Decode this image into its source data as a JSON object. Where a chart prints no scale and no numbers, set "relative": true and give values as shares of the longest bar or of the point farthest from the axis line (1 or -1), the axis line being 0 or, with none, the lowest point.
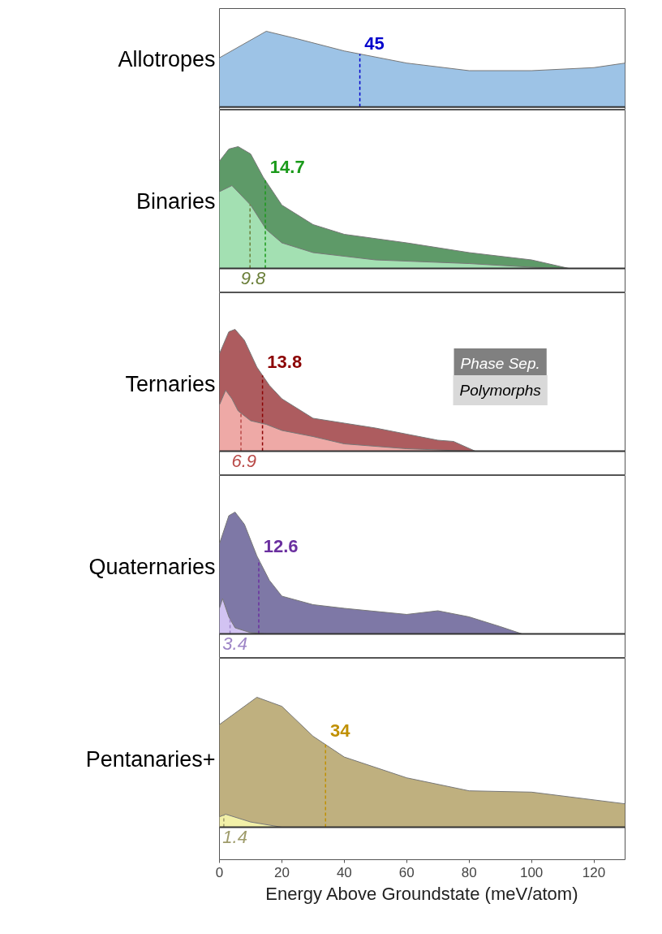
{
  "chart_data": [
    {
      "type": "area",
      "ylabel": "Allotropes",
      "relative": true,
      "xlim": [
        0,
        130
      ],
      "tick_labels": false,
      "grid": false,
      "series": [
        {
          "color": "#9dc3e6",
          "x": [
            0,
            15,
            25,
            40,
            60,
            80,
            100,
            120,
            130
          ],
          "values": [
            0.65,
            1,
            0.9,
            0.74,
            0.58,
            0.48,
            0.48,
            0.52,
            0.58
          ]
        }
      ],
      "ref_lines": [
        {
          "axis": "x",
          "value": 45,
          "label": "45",
          "color": "#0000cc",
          "line_style": "dashed"
        }
      ]
    },
    {
      "type": "area",
      "ylabel": "Binaries",
      "relative": true,
      "xlim": [
        0,
        130
      ],
      "tick_labels": false,
      "grid": false,
      "series": [
        {
          "color": "#5e9a68",
          "x": [
            0,
            3,
            6,
            10,
            14,
            20,
            30,
            40,
            60,
            80,
            100,
            112
          ],
          "values": [
            0.88,
            0.98,
            1,
            0.94,
            0.75,
            0.52,
            0.36,
            0.28,
            0.21,
            0.13,
            0.07,
            0
          ]
        },
        {
          "color": "#a3e0b2",
          "x": [
            0,
            4,
            10,
            15,
            20,
            30,
            50,
            80,
            100,
            110
          ],
          "values": [
            0.63,
            0.68,
            0.52,
            0.32,
            0.21,
            0.13,
            0.07,
            0.04,
            0.01,
            0
          ]
        }
      ],
      "ref_lines": [
        {
          "axis": "x",
          "value": 14.7,
          "label": "14.7",
          "color": "#1a9a1a",
          "line_style": "dashed"
        },
        {
          "axis": "x",
          "value": 9.8,
          "label": "9.8",
          "color": "#6b7f3a",
          "line_style": "dashed"
        }
      ]
    },
    {
      "type": "area",
      "ylabel": "Ternaries",
      "relative": true,
      "xlim": [
        0,
        130
      ],
      "tick_labels": false,
      "grid": false,
      "series": [
        {
          "color": "#ad5c5f",
          "x": [
            0,
            3,
            5,
            8,
            12,
            16,
            20,
            30,
            40,
            50,
            60,
            70,
            75,
            82
          ],
          "values": [
            0.8,
            0.98,
            1,
            0.91,
            0.69,
            0.54,
            0.43,
            0.27,
            0.23,
            0.19,
            0.14,
            0.09,
            0.08,
            0
          ]
        },
        {
          "color": "#eea9a6",
          "x": [
            0,
            2,
            4,
            6,
            10,
            15,
            20,
            30,
            40,
            60,
            80
          ],
          "values": [
            0.38,
            0.5,
            0.43,
            0.33,
            0.25,
            0.22,
            0.17,
            0.12,
            0.06,
            0.02,
            0
          ]
        }
      ],
      "ref_lines": [
        {
          "axis": "x",
          "value": 13.8,
          "label": "13.8",
          "color": "#8b0000",
          "line_style": "dashed"
        },
        {
          "axis": "x",
          "value": 6.9,
          "label": "6.9",
          "color": "#b94a48",
          "line_style": "dashed"
        }
      ],
      "annotations": [
        "Phase Sep.",
        "Polymorphs"
      ]
    },
    {
      "type": "area",
      "ylabel": "Quaternaries",
      "relative": true,
      "xlim": [
        0,
        130
      ],
      "tick_labels": false,
      "grid": false,
      "series": [
        {
          "color": "#7e78a6",
          "x": [
            0,
            3,
            5,
            8,
            12,
            16,
            20,
            30,
            40,
            60,
            70,
            80,
            90,
            97
          ],
          "values": [
            0.74,
            0.97,
            1,
            0.9,
            0.64,
            0.44,
            0.31,
            0.24,
            0.21,
            0.16,
            0.19,
            0.14,
            0.06,
            0
          ]
        },
        {
          "color": "#d2c3f2",
          "x": [
            0,
            1,
            3,
            5,
            10,
            15
          ],
          "values": [
            0.21,
            0.29,
            0.14,
            0.05,
            0.01,
            0
          ]
        }
      ],
      "ref_lines": [
        {
          "axis": "x",
          "value": 12.6,
          "label": "12.6",
          "color": "#6a2f9f",
          "line_style": "dashed"
        },
        {
          "axis": "x",
          "value": 3.4,
          "label": "3.4",
          "color": "#9d84c6",
          "line_style": "dashed"
        }
      ]
    },
    {
      "type": "area",
      "ylabel": "Pentanaries+",
      "xlabel": "Energy Above Groundstate (meV/atom)",
      "relative": true,
      "xlim": [
        0,
        130
      ],
      "xticks": [
        0,
        20,
        40,
        60,
        80,
        100,
        120
      ],
      "grid": false,
      "series": [
        {
          "color": "#bfb07f",
          "x": [
            0,
            12,
            20,
            30,
            40,
            60,
            80,
            100,
            120,
            130
          ],
          "values": [
            0.79,
            1,
            0.93,
            0.7,
            0.54,
            0.38,
            0.28,
            0.27,
            0.21,
            0.18
          ]
        },
        {
          "color": "#f2f0a8",
          "x": [
            0,
            2,
            10,
            20
          ],
          "values": [
            0.08,
            0.1,
            0.04,
            0
          ]
        }
      ],
      "ref_lines": [
        {
          "axis": "x",
          "value": 34,
          "label": "34",
          "color": "#c09000",
          "line_style": "dashed"
        },
        {
          "axis": "x",
          "value": 1.4,
          "label": "1.4",
          "color": "#9e9b6a",
          "line_style": "dashed"
        }
      ]
    }
  ]
}
